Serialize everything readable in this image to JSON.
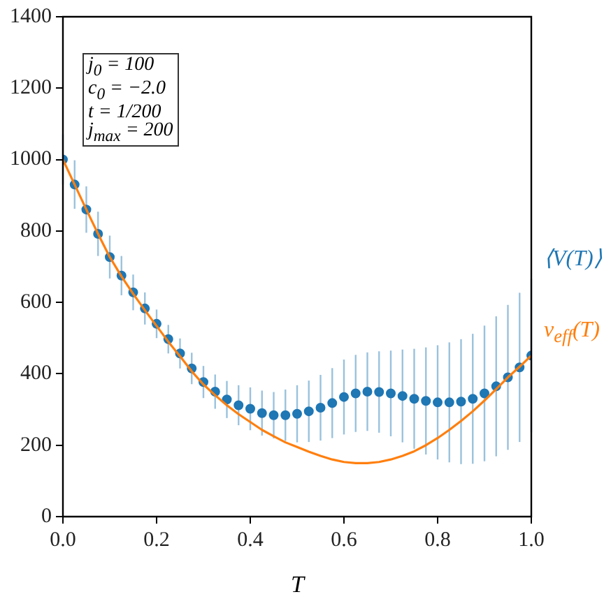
{
  "chart_data": {
    "type": "line",
    "xlabel": "T",
    "xlim": [
      0,
      1
    ],
    "ylim": [
      0,
      1400
    ],
    "xticks": [
      {
        "value": 0,
        "label": "0.0"
      },
      {
        "value": 0.2,
        "label": "0.2"
      },
      {
        "value": 0.4,
        "label": "0.4"
      },
      {
        "value": 0.6,
        "label": "0.6"
      },
      {
        "value": 0.8,
        "label": "0.8"
      },
      {
        "value": 1,
        "label": "1.0"
      }
    ],
    "yticks": [
      0,
      200,
      400,
      600,
      800,
      1000,
      1200,
      1400
    ],
    "grid": false,
    "legend": false,
    "x": [
      0,
      0.025,
      0.05,
      0.075,
      0.1,
      0.125,
      0.15,
      0.175,
      0.2,
      0.225,
      0.25,
      0.275,
      0.3,
      0.325,
      0.35,
      0.375,
      0.4,
      0.425,
      0.45,
      0.475,
      0.5,
      0.525,
      0.55,
      0.575,
      0.6,
      0.625,
      0.65,
      0.675,
      0.7,
      0.725,
      0.75,
      0.775,
      0.8,
      0.825,
      0.85,
      0.875,
      0.9,
      0.925,
      0.95,
      0.975,
      1
    ],
    "series": [
      {
        "name": "⟨V(T)⟩",
        "type": "scatter",
        "marker": "circle",
        "color": "#1f77b4",
        "values": [
          1000,
          930,
          860,
          792,
          727,
          675,
          628,
          583,
          540,
          497,
          457,
          415,
          377,
          350,
          328,
          312,
          302,
          290,
          284,
          284,
          288,
          295,
          305,
          318,
          335,
          345,
          350,
          349,
          345,
          338,
          330,
          324,
          320,
          320,
          322,
          330,
          345,
          365,
          390,
          418,
          451
        ],
        "errors": [
          70,
          68,
          65,
          62,
          60,
          55,
          50,
          45,
          40,
          40,
          42,
          44,
          45,
          48,
          52,
          56,
          60,
          63,
          65,
          72,
          80,
          86,
          92,
          98,
          105,
          108,
          110,
          114,
          120,
          130,
          140,
          150,
          160,
          168,
          175,
          182,
          190,
          196,
          203,
          209,
          215
        ]
      },
      {
        "name": "v$_{eff}$(T)",
        "type": "line",
        "marker": "none",
        "color": "#ff7f0e",
        "values": [
          1000,
          930,
          860,
          792,
          727,
          673,
          624,
          578,
          534,
          490,
          449,
          407,
          370,
          340,
          312,
          287,
          265,
          243,
          225,
          208,
          195,
          182,
          170,
          160,
          153,
          150,
          150,
          153,
          160,
          170,
          183,
          200,
          220,
          243,
          268,
          295,
          325,
          357,
          390,
          420,
          451
        ]
      }
    ],
    "annotations": [
      "j$_{0}$ = 100",
      "c$_{0}$ = −2.0",
      "t = 1/200",
      "j$_{max}$ = 200"
    ]
  }
}
